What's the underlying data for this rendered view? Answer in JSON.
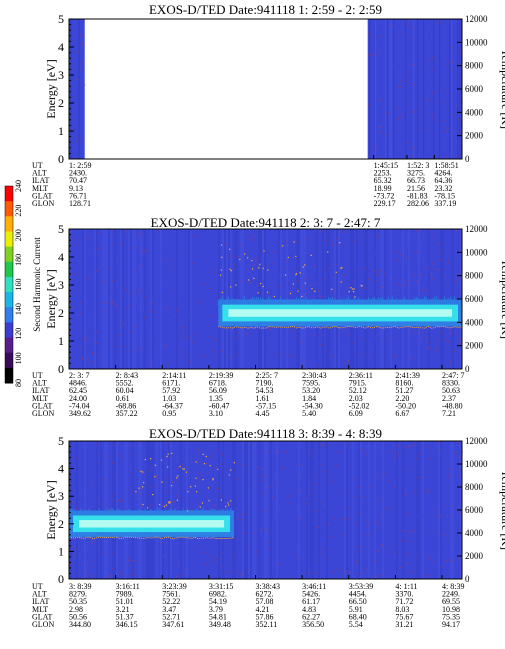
{
  "chart_data": [
    {
      "type": "heatmap",
      "title": "EXOS-D/TED   Date:941118  1: 2:59 - 2: 2:59",
      "ylabel": "Energy [eV]",
      "y2label": "Temperature [K]",
      "ylim": [
        0,
        5
      ],
      "y_ticks": [
        "0",
        "1",
        "2",
        "3",
        "4",
        "5"
      ],
      "y2lim": [
        0,
        12000
      ],
      "y2_ticks": [
        "0",
        "2000",
        "4000",
        "6000",
        "8000",
        "10000",
        "12000"
      ],
      "data_coverage": [
        [
          0.0,
          0.04
        ],
        [
          0.76,
          1.0
        ]
      ],
      "band": null,
      "ephemeris": {
        "labels": [
          "UT",
          "ALT",
          "ILAT",
          "MLT",
          "GLAT",
          "GLON"
        ],
        "columns": [
          {
            "ut": "1: 2:59",
            "vals": [
              "2430.",
              "70.47",
              "9.13",
              "76.71",
              "128.71"
            ]
          },
          {
            "ut": "1:45:15",
            "vals": [
              "2253.",
              "65.32",
              "18.99",
              "-73.72",
              "229.17"
            ]
          },
          {
            "ut": "1:52: 3",
            "vals": [
              "3275.",
              "66.73",
              "21.56",
              "-81.83",
              "282.06"
            ]
          },
          {
            "ut": "1:58:51",
            "vals": [
              "4264.",
              "64.36",
              "23.32",
              "-78.15",
              "337.19"
            ]
          }
        ]
      }
    },
    {
      "type": "heatmap",
      "title": "EXOS-D/TED   Date:941118  2: 3: 7 - 2:47: 7",
      "ylabel": "Energy [eV]",
      "y2label": "Temperature [K]",
      "ylim": [
        0,
        5
      ],
      "y_ticks": [
        "0",
        "1",
        "2",
        "3",
        "4",
        "5"
      ],
      "y2lim": [
        0,
        12000
      ],
      "y2_ticks": [
        "0",
        "2000",
        "4000",
        "6000",
        "8000",
        "10000",
        "12000"
      ],
      "data_coverage": [
        [
          0.0,
          1.0
        ]
      ],
      "band": {
        "energy_center_eV": 2.0,
        "energy_halfwidth_eV": 0.3,
        "time_fraction": [
          0.38,
          1.0
        ]
      },
      "ephemeris": {
        "labels": [
          "UT",
          "ALT",
          "ILAT",
          "MLT",
          "GLAT",
          "GLON"
        ],
        "columns": [
          {
            "ut": "2: 3: 7",
            "vals": [
              "4846.",
              "62.45",
              "24.00",
              "-74.04",
              "349.62"
            ]
          },
          {
            "ut": "2: 8:43",
            "vals": [
              "5552.",
              "60.04",
              "0.61",
              "-68.86",
              "357.22"
            ]
          },
          {
            "ut": "2:14:11",
            "vals": [
              "6171.",
              "57.92",
              "1.03",
              "-64.37",
              "0.95"
            ]
          },
          {
            "ut": "2:19:39",
            "vals": [
              "6718.",
              "56.09",
              "1.35",
              "-60.47",
              "3.10"
            ]
          },
          {
            "ut": "2:25: 7",
            "vals": [
              "7190.",
              "54.53",
              "1.61",
              "-57.15",
              "4.45"
            ]
          },
          {
            "ut": "2:30:43",
            "vals": [
              "7595.",
              "53.20",
              "1.84",
              "-54.30",
              "5.40"
            ]
          },
          {
            "ut": "2:36:11",
            "vals": [
              "7915.",
              "52.12",
              "2.03",
              "-52.02",
              "6.09"
            ]
          },
          {
            "ut": "2:41:39",
            "vals": [
              "8160.",
              "51.27",
              "2.20",
              "-50.20",
              "6.67"
            ]
          },
          {
            "ut": "2:47: 7",
            "vals": [
              "8330.",
              "50.63",
              "2.37",
              "-48.80",
              "7.21"
            ]
          }
        ]
      }
    },
    {
      "type": "heatmap",
      "title": "EXOS-D/TED   Date:941118  3: 8:39 - 4: 8:39",
      "ylabel": "Energy [eV]",
      "y2label": "Temperature [K]",
      "ylim": [
        0,
        5
      ],
      "y_ticks": [
        "0",
        "1",
        "2",
        "3",
        "4",
        "5"
      ],
      "y2lim": [
        0,
        12000
      ],
      "y2_ticks": [
        "0",
        "2000",
        "4000",
        "6000",
        "8000",
        "10000",
        "12000"
      ],
      "data_coverage": [
        [
          0.0,
          1.0
        ]
      ],
      "band": {
        "energy_center_eV": 2.0,
        "energy_halfwidth_eV": 0.3,
        "time_fraction": [
          0.0,
          0.42
        ]
      },
      "ephemeris": {
        "labels": [
          "UT",
          "ALT",
          "ILAT",
          "MLT",
          "GLAT",
          "GLON"
        ],
        "columns": [
          {
            "ut": "3: 8:39",
            "vals": [
              "8279.",
              "50.35",
              "2.98",
              "50.56",
              "344.80"
            ]
          },
          {
            "ut": "3:16:11",
            "vals": [
              "7989.",
              "51.01",
              "3.21",
              "51.37",
              "346.15"
            ]
          },
          {
            "ut": "3:23:39",
            "vals": [
              "7561.",
              "52.22",
              "3.47",
              "52.71",
              "347.61"
            ]
          },
          {
            "ut": "3:31:15",
            "vals": [
              "6982.",
              "54.19",
              "3.79",
              "54.81",
              "349.48"
            ]
          },
          {
            "ut": "3:38:43",
            "vals": [
              "6272.",
              "57.08",
              "4.21",
              "57.86",
              "352.11"
            ]
          },
          {
            "ut": "3:46:11",
            "vals": [
              "5426.",
              "61.17",
              "4.83",
              "62.27",
              "356.50"
            ]
          },
          {
            "ut": "3:53:39",
            "vals": [
              "4454.",
              "66.50",
              "5.91",
              "68.40",
              "5.54"
            ]
          },
          {
            "ut": "4: 1:11",
            "vals": [
              "3370.",
              "71.72",
              "8.03",
              "75.67",
              "31.21"
            ]
          },
          {
            "ut": "4: 8:39",
            "vals": [
              "2249.",
              "69.55",
              "10.98",
              "75.35",
              "94.17"
            ]
          }
        ]
      }
    }
  ],
  "colorbar": {
    "label": "Second Harmonic Current",
    "ticks": [
      "80",
      "100",
      "120",
      "140",
      "160",
      "180",
      "200",
      "220",
      "240"
    ],
    "colors": [
      "#000000",
      "#3a0a5a",
      "#5a1e8c",
      "#3c3cd0",
      "#2f7df0",
      "#18b7e8",
      "#2ee0c0",
      "#1ec84a",
      "#7ed321",
      "#e8f000",
      "#ffb000",
      "#ff5a00",
      "#ff0000"
    ]
  },
  "colors": {
    "background_blue": "#3b46d6",
    "band_cyan": "#35e0ea",
    "band_core": "#b4fbf2",
    "band_edge": "#2a8de8",
    "trace_orange": "#ffb030",
    "trace_red": "#c83a3a"
  }
}
